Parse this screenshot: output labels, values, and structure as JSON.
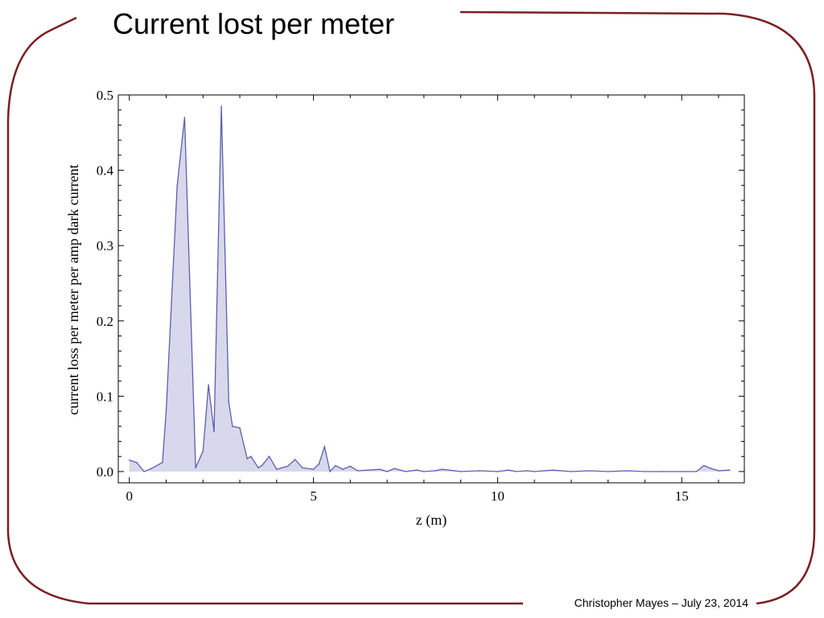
{
  "slide": {
    "title": "Current lost per meter",
    "footer": "Christopher Mayes – July 23, 2014",
    "frame_color": "#7a1f22"
  },
  "chart_data": {
    "type": "area",
    "title": "",
    "xlabel": "z (m)",
    "ylabel": "current loss per meter per amp dark current",
    "xlim": [
      -0.3,
      16.7
    ],
    "ylim": [
      -0.015,
      0.5
    ],
    "xticks": [
      0,
      5,
      10,
      15
    ],
    "xtick_labels": [
      "0",
      "5",
      "10",
      "15"
    ],
    "yticks": [
      0.0,
      0.1,
      0.2,
      0.3,
      0.4,
      0.5
    ],
    "ytick_labels": [
      "0.0",
      "0.1",
      "0.2",
      "0.3",
      "0.4",
      "0.5"
    ],
    "grid": false,
    "line_color": "#5c5fae",
    "fill_color": "#d8d8ec",
    "series": [
      {
        "x": [
          0,
          0.2,
          0.4,
          0.6,
          0.9,
          1.0,
          1.3,
          1.5,
          1.8,
          2.0,
          2.15,
          2.3,
          2.5,
          2.7,
          2.8,
          3.0,
          3.2,
          3.3,
          3.5,
          3.6,
          3.8,
          4.0,
          4.3,
          4.5,
          4.7,
          5.0,
          5.15,
          5.3,
          5.45,
          5.6,
          5.8,
          6.0,
          6.2,
          6.5,
          6.8,
          7.0,
          7.2,
          7.5,
          7.8,
          8.0,
          8.3,
          8.5,
          9.0,
          9.5,
          10.0,
          10.3,
          10.5,
          10.8,
          11.0,
          11.5,
          12.0,
          12.5,
          13.0,
          13.5,
          14.0,
          14.5,
          15.0,
          15.4,
          15.6,
          15.8,
          16.0,
          16.3
        ],
        "y": [
          0.015,
          0.012,
          0.0,
          0.004,
          0.012,
          0.08,
          0.38,
          0.47,
          0.005,
          0.027,
          0.115,
          0.053,
          0.485,
          0.092,
          0.06,
          0.058,
          0.017,
          0.02,
          0.005,
          0.008,
          0.02,
          0.003,
          0.007,
          0.016,
          0.005,
          0.003,
          0.01,
          0.033,
          0.0,
          0.008,
          0.003,
          0.007,
          0.001,
          0.002,
          0.003,
          0.0,
          0.004,
          0.0,
          0.002,
          0.0,
          0.001,
          0.003,
          0.0,
          0.001,
          0.0,
          0.002,
          0.0,
          0.001,
          0.0,
          0.002,
          0.0,
          0.001,
          0.0,
          0.001,
          0.0,
          0.0,
          0.0,
          0.0,
          0.008,
          0.004,
          0.001,
          0.002
        ]
      }
    ]
  }
}
